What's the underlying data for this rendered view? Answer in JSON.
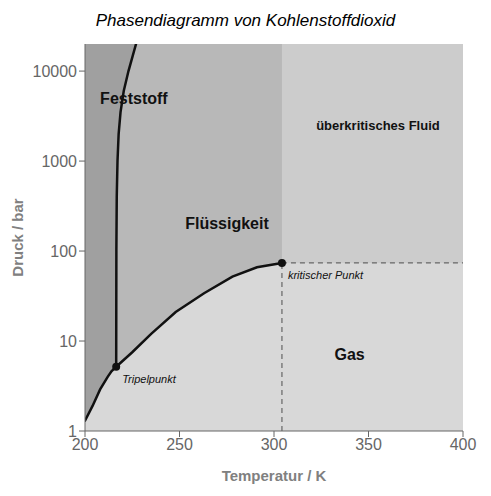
{
  "chart_data": {
    "type": "line",
    "title": "Phasendiagramm von Kohlenstoffdioxid",
    "xlabel": "Temperatur / K",
    "ylabel": "Druck / bar",
    "log": "y",
    "xlim": [
      200,
      400
    ],
    "ylim": [
      1,
      20000
    ],
    "xticks": [
      200,
      250,
      300,
      350,
      400
    ],
    "yticks": [
      1,
      10,
      100,
      1000,
      10000
    ],
    "grid": false,
    "series": [
      {
        "x": [
          200.0,
          204.0,
          208.0,
          212.0,
          214.0,
          216.5
        ],
        "values": [
          1.3,
          1.9,
          2.9,
          4.0,
          4.6,
          5.18
        ],
        "color": "#111111"
      },
      {
        "x": [
          216.5,
          216.6,
          216.8,
          217.2,
          217.8,
          218.8,
          220.5,
          223.0,
          227.0
        ],
        "values": [
          5.18,
          100,
          400,
          1000,
          2000,
          3500,
          6000,
          10000,
          20000
        ],
        "color": "#111111"
      },
      {
        "x": [
          216.5,
          225.0,
          235.0,
          248.0,
          263.0,
          278.0,
          291.0,
          304.2
        ],
        "values": [
          5.18,
          7.5,
          12.0,
          21.0,
          34.0,
          52.0,
          66.0,
          73.8
        ],
        "color": "#111111"
      }
    ],
    "phases": [
      {
        "text": "Gas",
        "color": "#d8d8d8",
        "x": 340,
        "y": 7
      },
      {
        "text": "Flüssigkeit",
        "color": "#b8b8b8",
        "x": 253,
        "y": 200
      },
      {
        "text": "Feststoff",
        "color": "#a0a0a0",
        "x": 208,
        "y": 5000
      },
      {
        "text": "überkritisches Fluid",
        "color": "#cccccc",
        "x": 355,
        "y": 2500
      }
    ],
    "points": [
      {
        "label": "Tripelpunkt",
        "x": 216.5,
        "y": 5.18,
        "color": "#111111"
      },
      {
        "label": "kritischer Punkt",
        "x": 304.2,
        "y": 73.8,
        "color": "#111111",
        "line_style": "dashed"
      }
    ]
  }
}
